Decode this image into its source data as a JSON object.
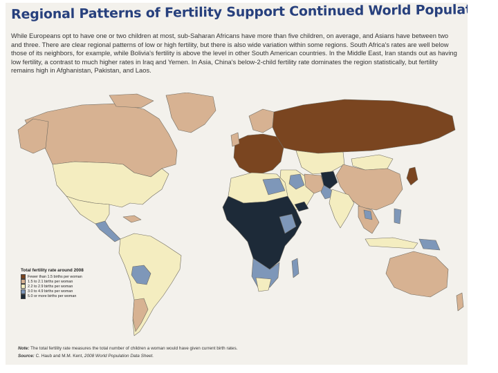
{
  "title": "Regional Patterns of Fertility Support Continued World Population Growth.",
  "intro": "While Europeans opt to have one or two children at most, sub-Saharan Africans have more than five children, on average, and Asians have between two and three. There are clear regional patterns of low or high fertility, but there is also wide variation within some regions. South Africa's rates are well below those of its neighbors, for example, while Bolivia's fertility is above the level in other South American countries. In the Middle East, Iran stands out as having low fertility, a contrast to much higher rates in Iraq and Yemen. In Asia, China's below-2-child fertility rate dominates the region statistically, but fertility remains high in Afghanistan, Pakistan, and Laos.",
  "legend": {
    "title": "Total fertility rate around 2008",
    "items": [
      {
        "label": "Fewer than 1.5 births per woman",
        "color": "#7a4520"
      },
      {
        "label": "1.5 to 2.1 births per woman",
        "color": "#d7b292"
      },
      {
        "label": "2.2 to 2.9 births per woman",
        "color": "#f4edc0"
      },
      {
        "label": "3.0 to 4.9 births per woman",
        "color": "#7e97b9"
      },
      {
        "label": "5.0 or more births per woman",
        "color": "#1d2a38"
      }
    ]
  },
  "note": {
    "label": "Note:",
    "text": "The total fertility rate measures the total number of children a woman would have given current birth rates."
  },
  "source": {
    "label": "Source:",
    "authors": "C. Haub and M.M. Kent,",
    "publication": "2008 World Population Data Sheet."
  },
  "colors": {
    "ocean": "#f3f1ec",
    "title": "#27407d",
    "lt15": "#7a4520",
    "r15_21": "#d7b292",
    "r22_29": "#f4edc0",
    "r30_49": "#7e97b9",
    "gt5": "#1d2a38"
  }
}
